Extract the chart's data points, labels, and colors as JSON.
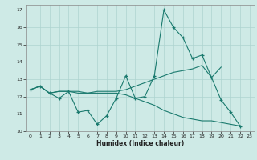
{
  "xlabel": "Humidex (Indice chaleur)",
  "xlim": [
    -0.5,
    23.5
  ],
  "ylim": [
    10,
    17.3
  ],
  "yticks": [
    10,
    11,
    12,
    13,
    14,
    15,
    16,
    17
  ],
  "xticks": [
    0,
    1,
    2,
    3,
    4,
    5,
    6,
    7,
    8,
    9,
    10,
    11,
    12,
    13,
    14,
    15,
    16,
    17,
    18,
    19,
    20,
    21,
    22,
    23
  ],
  "bg_color": "#ceeae6",
  "grid_color": "#aed4d0",
  "line_color": "#1a7a6e",
  "line1_x": [
    0,
    1,
    2,
    3,
    4,
    5,
    6,
    7,
    8,
    9,
    10,
    11,
    12,
    13,
    14,
    15,
    16,
    17,
    18,
    19,
    20,
    21,
    22
  ],
  "line1_y": [
    12.4,
    12.6,
    12.2,
    11.9,
    12.3,
    11.1,
    11.2,
    10.4,
    10.9,
    11.9,
    13.2,
    11.9,
    12.0,
    13.2,
    17.0,
    16.0,
    15.4,
    14.2,
    14.4,
    13.1,
    11.8,
    11.1,
    10.3
  ],
  "line2_x": [
    0,
    1,
    2,
    3,
    4,
    5,
    6,
    7,
    8,
    9,
    10,
    11,
    12,
    13,
    14,
    15,
    16,
    17,
    18,
    19,
    20
  ],
  "line2_y": [
    12.4,
    12.6,
    12.2,
    12.3,
    12.3,
    12.3,
    12.2,
    12.3,
    12.3,
    12.3,
    12.4,
    12.6,
    12.8,
    13.0,
    13.2,
    13.4,
    13.5,
    13.6,
    13.8,
    13.1,
    13.7
  ],
  "line3_x": [
    0,
    1,
    2,
    3,
    4,
    5,
    6,
    7,
    8,
    9,
    10,
    11,
    12,
    13,
    14,
    15,
    16,
    17,
    18,
    19,
    20,
    21,
    22
  ],
  "line3_y": [
    12.4,
    12.6,
    12.2,
    12.3,
    12.3,
    12.2,
    12.2,
    12.2,
    12.2,
    12.2,
    12.1,
    11.9,
    11.7,
    11.5,
    11.2,
    11.0,
    10.8,
    10.7,
    10.6,
    10.6,
    10.5,
    10.4,
    10.3
  ]
}
